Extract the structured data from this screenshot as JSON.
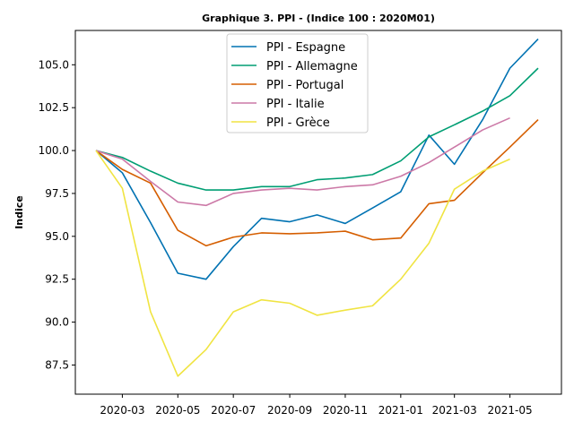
{
  "chart_data": {
    "type": "line",
    "title": "Graphique 3. PPI  - (Indice 100 : 2020M01)",
    "xlabel": "",
    "ylabel": "Indice",
    "x": [
      "2020-02",
      "2020-03",
      "2020-04",
      "2020-05",
      "2020-06",
      "2020-07",
      "2020-08",
      "2020-09",
      "2020-10",
      "2020-11",
      "2020-12",
      "2021-01",
      "2021-02",
      "2021-03",
      "2021-04",
      "2021-05",
      "2021-06"
    ],
    "xticks": [
      "2020-03",
      "2020-05",
      "2020-07",
      "2020-09",
      "2020-11",
      "2021-01",
      "2021-03",
      "2021-05"
    ],
    "yticks": [
      87.5,
      90.0,
      92.5,
      95.0,
      97.5,
      100.0,
      102.5,
      105.0
    ],
    "ytick_labels": [
      "87.5",
      "90.0",
      "92.5",
      "95.0",
      "97.5",
      "100.0",
      "102.5",
      "105.0"
    ],
    "ylim": [
      85.8,
      107.0
    ],
    "grid": false,
    "legend_position": "top-center",
    "series": [
      {
        "name": "PPI - Espagne",
        "color": "#0072b2",
        "values": [
          100.0,
          98.7,
          95.8,
          92.85,
          92.5,
          94.4,
          96.05,
          95.85,
          96.25,
          95.75,
          96.65,
          97.6,
          100.9,
          99.2,
          101.8,
          104.8,
          106.5
        ]
      },
      {
        "name": "PPI - Allemagne",
        "color": "#009e73",
        "values": [
          100.0,
          99.6,
          98.8,
          98.1,
          97.7,
          97.7,
          97.9,
          97.9,
          98.3,
          98.4,
          98.6,
          99.4,
          100.8,
          101.5,
          102.3,
          103.2,
          104.8
        ]
      },
      {
        "name": "PPI - Portugal",
        "color": "#d55e00",
        "values": [
          100.0,
          98.9,
          98.1,
          95.35,
          94.45,
          94.95,
          95.2,
          95.15,
          95.2,
          95.3,
          94.8,
          94.9,
          96.9,
          97.1,
          98.7,
          100.2,
          101.8
        ]
      },
      {
        "name": "PPI - Italie",
        "color": "#cc79a7",
        "values": [
          100.0,
          99.5,
          98.2,
          97.0,
          96.8,
          97.5,
          97.7,
          97.8,
          97.7,
          97.9,
          98.0,
          98.5,
          99.3,
          100.2,
          101.2,
          101.9,
          null
        ]
      },
      {
        "name": "PPI - Grèce",
        "color": "#f0e442",
        "values": [
          100.0,
          97.8,
          90.6,
          86.85,
          88.4,
          90.6,
          91.3,
          91.1,
          90.4,
          90.7,
          90.95,
          92.5,
          94.6,
          97.75,
          98.8,
          99.5,
          null
        ]
      }
    ]
  }
}
